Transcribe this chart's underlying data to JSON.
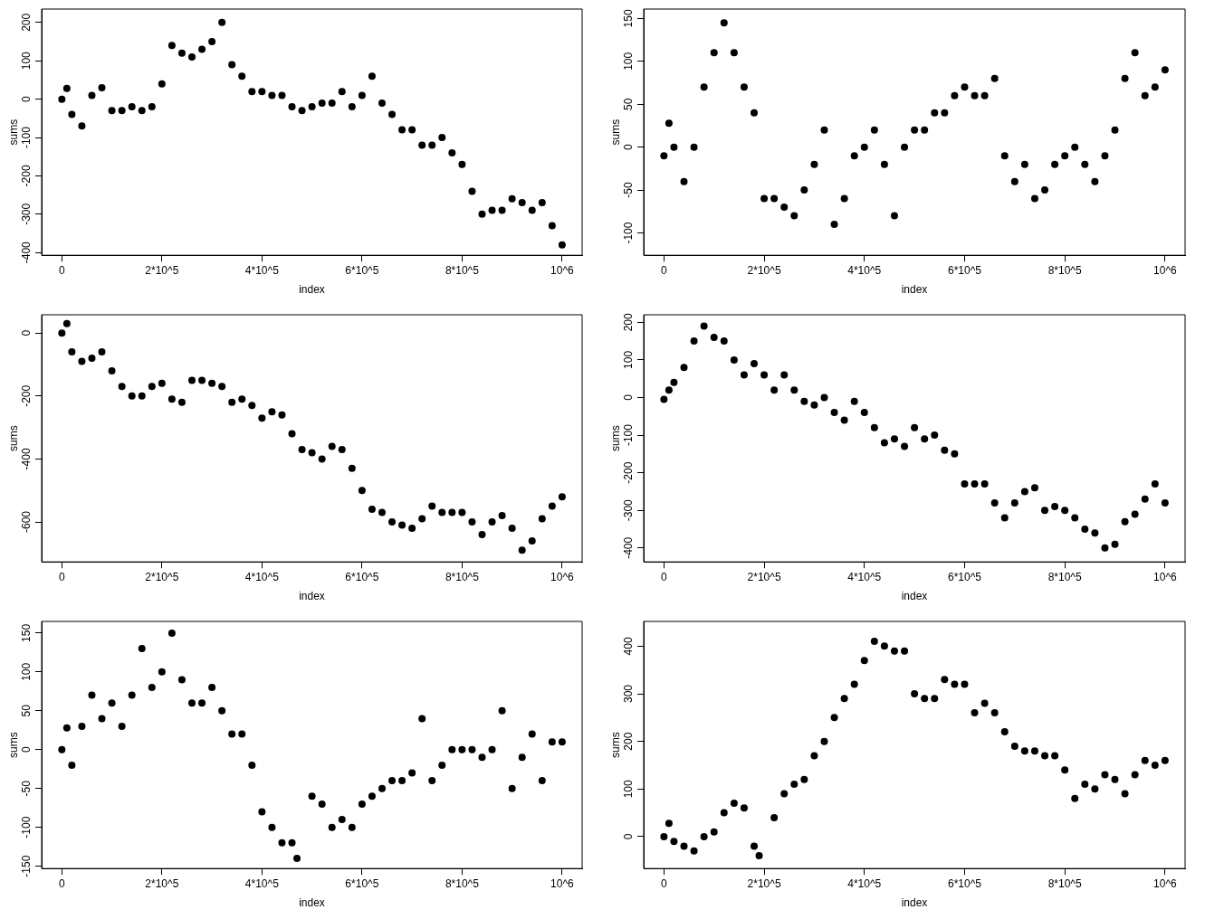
{
  "chart_data": [
    {
      "type": "scatter",
      "xlabel": "index",
      "ylabel": "sums",
      "marker": "circle",
      "grid": false,
      "legend": false,
      "xlim": [
        -40400,
        1040000
      ],
      "ylim": [
        -407,
        235
      ],
      "xticks": [
        {
          "value": 0,
          "label": "0"
        },
        {
          "value": 200000,
          "label": "2*10^5"
        },
        {
          "value": 400000,
          "label": "4*10^5"
        },
        {
          "value": 600000,
          "label": "6*10^5"
        },
        {
          "value": 800000,
          "label": "8*10^5"
        },
        {
          "value": 1000000,
          "label": "10^6"
        }
      ],
      "yticks": [
        -400,
        -300,
        -200,
        -100,
        0,
        100,
        200
      ],
      "x": [
        0,
        10000,
        20000,
        40000,
        60000,
        80000,
        100000,
        120000,
        140000,
        160000,
        180000,
        200000,
        220000,
        240000,
        260000,
        280000,
        300000,
        320000,
        340000,
        360000,
        380000,
        400000,
        420000,
        440000,
        460000,
        480000,
        500000,
        520000,
        540000,
        560000,
        580000,
        600000,
        620000,
        640000,
        660000,
        680000,
        700000,
        720000,
        740000,
        760000,
        780000,
        800000,
        820000,
        840000,
        860000,
        880000,
        900000,
        920000,
        940000,
        960000,
        980000,
        1000000
      ],
      "series": [
        {
          "color": "#000000",
          "values": [
            0,
            28,
            -40,
            -70,
            10,
            30,
            -30,
            -30,
            -20,
            -30,
            -20,
            40,
            140,
            120,
            110,
            130,
            150,
            200,
            90,
            60,
            20,
            20,
            10,
            10,
            -20,
            -30,
            -20,
            -10,
            -10,
            20,
            -20,
            10,
            60,
            -10,
            -40,
            -80,
            -80,
            -120,
            -120,
            -100,
            -140,
            -170,
            -240,
            -300,
            -290,
            -290,
            -260,
            -270,
            -290,
            -270,
            -330,
            -380
          ]
        }
      ]
    },
    {
      "type": "scatter",
      "xlabel": "index",
      "ylabel": "sums",
      "marker": "circle",
      "grid": false,
      "legend": false,
      "xlim": [
        -40400,
        1040000
      ],
      "ylim": [
        -126,
        161
      ],
      "xticks": [
        {
          "value": 0,
          "label": "0"
        },
        {
          "value": 200000,
          "label": "2*10^5"
        },
        {
          "value": 400000,
          "label": "4*10^5"
        },
        {
          "value": 600000,
          "label": "6*10^5"
        },
        {
          "value": 800000,
          "label": "8*10^5"
        },
        {
          "value": 1000000,
          "label": "10^6"
        }
      ],
      "yticks": [
        -100,
        -50,
        0,
        50,
        100,
        150
      ],
      "x": [
        0,
        10000,
        20000,
        40000,
        60000,
        80000,
        100000,
        120000,
        140000,
        160000,
        180000,
        200000,
        220000,
        240000,
        260000,
        280000,
        300000,
        320000,
        340000,
        360000,
        380000,
        400000,
        420000,
        440000,
        460000,
        480000,
        500000,
        520000,
        540000,
        560000,
        580000,
        600000,
        620000,
        640000,
        660000,
        680000,
        700000,
        720000,
        740000,
        760000,
        780000,
        800000,
        820000,
        840000,
        860000,
        880000,
        900000,
        920000,
        940000,
        960000,
        980000,
        1000000
      ],
      "series": [
        {
          "color": "#000000",
          "values": [
            -10,
            28,
            0,
            -40,
            0,
            70,
            110,
            145,
            110,
            70,
            40,
            -60,
            -60,
            -70,
            -80,
            -50,
            -20,
            20,
            -90,
            -60,
            -10,
            0,
            20,
            -20,
            -80,
            0,
            20,
            20,
            40,
            40,
            60,
            70,
            60,
            60,
            80,
            -10,
            -40,
            -20,
            -60,
            -50,
            -20,
            -10,
            0,
            -20,
            -40,
            -10,
            20,
            80,
            110,
            60,
            70,
            90
          ]
        }
      ]
    },
    {
      "type": "scatter",
      "xlabel": "index",
      "ylabel": "sums",
      "marker": "circle",
      "grid": false,
      "legend": false,
      "xlim": [
        -40400,
        1040000
      ],
      "ylim": [
        -727,
        58
      ],
      "xticks": [
        {
          "value": 0,
          "label": "0"
        },
        {
          "value": 200000,
          "label": "2*10^5"
        },
        {
          "value": 400000,
          "label": "4*10^5"
        },
        {
          "value": 600000,
          "label": "6*10^5"
        },
        {
          "value": 800000,
          "label": "8*10^5"
        },
        {
          "value": 1000000,
          "label": "10^6"
        }
      ],
      "yticks": [
        -600,
        -400,
        -200,
        0
      ],
      "x": [
        0,
        10000,
        20000,
        40000,
        60000,
        80000,
        100000,
        120000,
        140000,
        160000,
        180000,
        200000,
        220000,
        240000,
        260000,
        280000,
        300000,
        320000,
        340000,
        360000,
        380000,
        400000,
        420000,
        440000,
        460000,
        480000,
        500000,
        520000,
        540000,
        560000,
        580000,
        600000,
        620000,
        640000,
        660000,
        680000,
        700000,
        720000,
        740000,
        760000,
        780000,
        800000,
        820000,
        840000,
        860000,
        880000,
        900000,
        920000,
        940000,
        960000,
        980000,
        1000000
      ],
      "series": [
        {
          "color": "#000000",
          "values": [
            0,
            30,
            -60,
            -90,
            -80,
            -60,
            -120,
            -170,
            -200,
            -200,
            -170,
            -160,
            -210,
            -220,
            -150,
            -150,
            -160,
            -170,
            -220,
            -210,
            -230,
            -270,
            -250,
            -260,
            -320,
            -370,
            -380,
            -400,
            -360,
            -370,
            -430,
            -500,
            -560,
            -570,
            -600,
            -610,
            -620,
            -590,
            -550,
            -570,
            -570,
            -570,
            -600,
            -640,
            -600,
            -580,
            -620,
            -690,
            -660,
            -590,
            -550,
            -520
          ]
        }
      ]
    },
    {
      "type": "scatter",
      "xlabel": "index",
      "ylabel": "sums",
      "marker": "circle",
      "grid": false,
      "legend": false,
      "xlim": [
        -40400,
        1040000
      ],
      "ylim": [
        -437,
        220
      ],
      "xticks": [
        {
          "value": 0,
          "label": "0"
        },
        {
          "value": 200000,
          "label": "2*10^5"
        },
        {
          "value": 400000,
          "label": "4*10^5"
        },
        {
          "value": 600000,
          "label": "6*10^5"
        },
        {
          "value": 800000,
          "label": "8*10^5"
        },
        {
          "value": 1000000,
          "label": "10^6"
        }
      ],
      "yticks": [
        -400,
        -300,
        -200,
        -100,
        0,
        100,
        200
      ],
      "x": [
        0,
        10000,
        20000,
        40000,
        60000,
        80000,
        100000,
        120000,
        140000,
        160000,
        180000,
        200000,
        220000,
        240000,
        260000,
        280000,
        300000,
        320000,
        340000,
        360000,
        380000,
        400000,
        420000,
        440000,
        460000,
        480000,
        500000,
        520000,
        540000,
        560000,
        580000,
        600000,
        620000,
        640000,
        660000,
        680000,
        700000,
        720000,
        740000,
        760000,
        780000,
        800000,
        820000,
        840000,
        860000,
        880000,
        900000,
        920000,
        940000,
        960000,
        980000,
        1000000
      ],
      "series": [
        {
          "color": "#000000",
          "values": [
            -5,
            20,
            40,
            80,
            150,
            190,
            160,
            150,
            100,
            60,
            90,
            60,
            20,
            60,
            20,
            -10,
            -20,
            0,
            -40,
            -60,
            -10,
            -40,
            -80,
            -120,
            -110,
            -130,
            -80,
            -110,
            -100,
            -140,
            -150,
            -230,
            -230,
            -230,
            -280,
            -320,
            -280,
            -250,
            -240,
            -300,
            -290,
            -300,
            -320,
            -350,
            -360,
            -400,
            -390,
            -330,
            -310,
            -270,
            -230,
            -280
          ]
        }
      ]
    },
    {
      "type": "scatter",
      "xlabel": "index",
      "ylabel": "sums",
      "marker": "circle",
      "grid": false,
      "legend": false,
      "xlim": [
        -40400,
        1040000
      ],
      "ylim": [
        -153,
        165
      ],
      "xticks": [
        {
          "value": 0,
          "label": "0"
        },
        {
          "value": 200000,
          "label": "2*10^5"
        },
        {
          "value": 400000,
          "label": "4*10^5"
        },
        {
          "value": 600000,
          "label": "6*10^5"
        },
        {
          "value": 800000,
          "label": "8*10^5"
        },
        {
          "value": 1000000,
          "label": "10^6"
        }
      ],
      "yticks": [
        -150,
        -100,
        -50,
        0,
        50,
        100,
        150
      ],
      "x": [
        0,
        10000,
        20000,
        40000,
        60000,
        80000,
        100000,
        120000,
        140000,
        160000,
        180000,
        200000,
        220000,
        240000,
        260000,
        280000,
        300000,
        320000,
        340000,
        360000,
        380000,
        400000,
        420000,
        440000,
        460000,
        470000,
        500000,
        520000,
        540000,
        560000,
        580000,
        600000,
        620000,
        640000,
        660000,
        680000,
        700000,
        720000,
        740000,
        760000,
        780000,
        800000,
        820000,
        840000,
        860000,
        880000,
        900000,
        920000,
        940000,
        960000,
        980000,
        1000000
      ],
      "series": [
        {
          "color": "#000000",
          "values": [
            0,
            28,
            -20,
            30,
            70,
            40,
            60,
            30,
            70,
            130,
            80,
            100,
            150,
            90,
            60,
            60,
            80,
            50,
            20,
            20,
            -20,
            -80,
            -100,
            -120,
            -120,
            -140,
            -60,
            -70,
            -100,
            -90,
            -100,
            -70,
            -60,
            -50,
            -40,
            -40,
            -30,
            40,
            -40,
            -20,
            0,
            0,
            0,
            -10,
            0,
            50,
            -50,
            -10,
            20,
            -40,
            10,
            10
          ]
        }
      ]
    },
    {
      "type": "scatter",
      "xlabel": "index",
      "ylabel": "sums",
      "marker": "circle",
      "grid": false,
      "legend": false,
      "xlim": [
        -40400,
        1040000
      ],
      "ylim": [
        -67,
        452
      ],
      "xticks": [
        {
          "value": 0,
          "label": "0"
        },
        {
          "value": 200000,
          "label": "2*10^5"
        },
        {
          "value": 400000,
          "label": "4*10^5"
        },
        {
          "value": 600000,
          "label": "6*10^5"
        },
        {
          "value": 800000,
          "label": "8*10^5"
        },
        {
          "value": 1000000,
          "label": "10^6"
        }
      ],
      "yticks": [
        0,
        100,
        200,
        300,
        400
      ],
      "x": [
        0,
        10000,
        20000,
        40000,
        60000,
        80000,
        100000,
        120000,
        140000,
        160000,
        180000,
        190000,
        220000,
        240000,
        260000,
        280000,
        300000,
        320000,
        340000,
        360000,
        380000,
        400000,
        420000,
        440000,
        460000,
        480000,
        500000,
        520000,
        540000,
        560000,
        580000,
        600000,
        620000,
        640000,
        660000,
        680000,
        700000,
        720000,
        740000,
        760000,
        780000,
        800000,
        820000,
        840000,
        860000,
        880000,
        900000,
        920000,
        940000,
        960000,
        980000,
        1000000
      ],
      "series": [
        {
          "color": "#000000",
          "values": [
            0,
            28,
            -10,
            -20,
            -30,
            0,
            10,
            50,
            70,
            60,
            -20,
            -40,
            40,
            90,
            110,
            120,
            170,
            200,
            250,
            290,
            320,
            370,
            410,
            400,
            390,
            390,
            300,
            290,
            290,
            330,
            320,
            320,
            260,
            280,
            260,
            220,
            190,
            180,
            180,
            170,
            170,
            140,
            80,
            110,
            100,
            130,
            120,
            90,
            130,
            160,
            150,
            160
          ]
        }
      ]
    }
  ]
}
